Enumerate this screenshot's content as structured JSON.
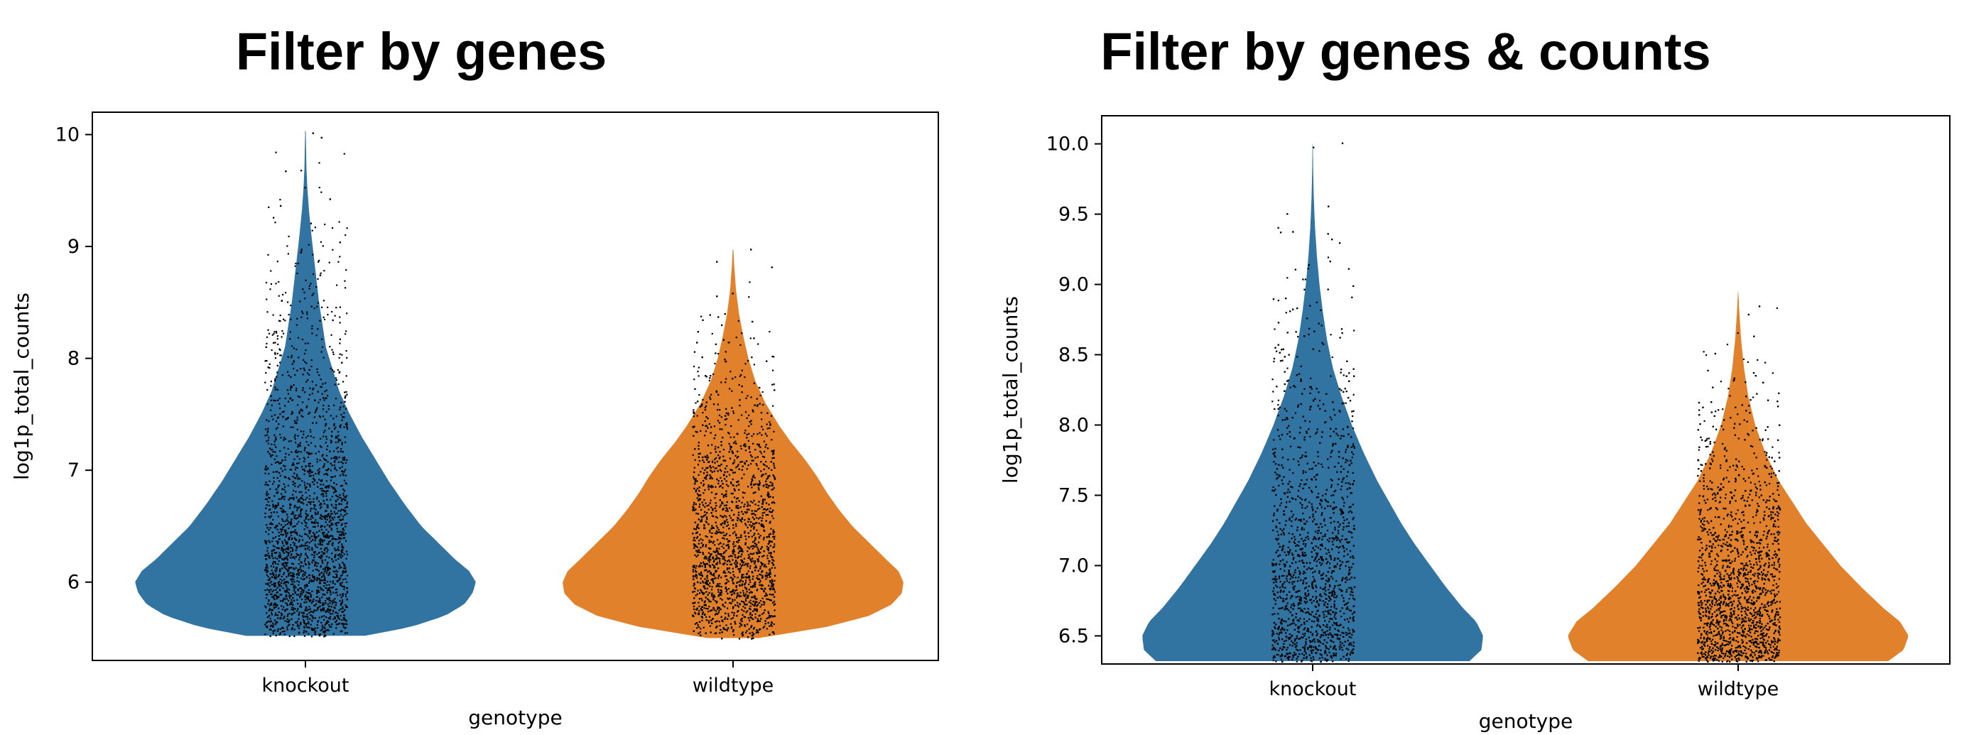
{
  "chart_data": [
    {
      "type": "violin",
      "title": "Filter by genes",
      "xlabel": "genotype",
      "ylabel": "log1p_total_counts",
      "categories": [
        "knockout",
        "wildtype"
      ],
      "ylim": [
        5.3,
        10.2
      ],
      "yticks": [
        6,
        7,
        8,
        9,
        10
      ],
      "ytick_labels": [
        "6",
        "7",
        "8",
        "9",
        "10"
      ],
      "series": [
        {
          "category": "knockout",
          "color": "#3274a1",
          "min": 5.52,
          "max": 10.03,
          "density": [
            [
              5.52,
              0.35
            ],
            [
              5.6,
              0.62
            ],
            [
              5.7,
              0.82
            ],
            [
              5.8,
              0.93
            ],
            [
              5.9,
              0.98
            ],
            [
              6.0,
              1.0
            ],
            [
              6.1,
              0.96
            ],
            [
              6.2,
              0.88
            ],
            [
              6.35,
              0.78
            ],
            [
              6.5,
              0.68
            ],
            [
              6.7,
              0.58
            ],
            [
              6.9,
              0.49
            ],
            [
              7.1,
              0.41
            ],
            [
              7.3,
              0.33
            ],
            [
              7.5,
              0.26
            ],
            [
              7.7,
              0.2
            ],
            [
              7.9,
              0.16
            ],
            [
              8.1,
              0.12
            ],
            [
              8.3,
              0.1
            ],
            [
              8.5,
              0.08
            ],
            [
              8.7,
              0.065
            ],
            [
              8.9,
              0.05
            ],
            [
              9.1,
              0.035
            ],
            [
              9.3,
              0.022
            ],
            [
              9.5,
              0.012
            ],
            [
              9.7,
              0.006
            ],
            [
              10.0,
              0.002
            ]
          ],
          "outliers": [
            [
              -0.12,
              9.68
            ],
            [
              0.09,
              9.98
            ],
            [
              0.04,
              10.02
            ],
            [
              -0.15,
              9.37
            ],
            [
              0.14,
              9.43
            ]
          ]
        },
        {
          "category": "wildtype",
          "color": "#e1812c",
          "min": 5.5,
          "max": 8.97,
          "density": [
            [
              5.5,
              0.15
            ],
            [
              5.6,
              0.55
            ],
            [
              5.7,
              0.8
            ],
            [
              5.8,
              0.93
            ],
            [
              5.9,
              0.99
            ],
            [
              6.0,
              1.0
            ],
            [
              6.1,
              0.97
            ],
            [
              6.2,
              0.9
            ],
            [
              6.35,
              0.8
            ],
            [
              6.5,
              0.7
            ],
            [
              6.65,
              0.62
            ],
            [
              6.8,
              0.55
            ],
            [
              6.95,
              0.49
            ],
            [
              7.1,
              0.42
            ],
            [
              7.25,
              0.34
            ],
            [
              7.4,
              0.27
            ],
            [
              7.6,
              0.19
            ],
            [
              7.8,
              0.13
            ],
            [
              8.0,
              0.09
            ],
            [
              8.2,
              0.06
            ],
            [
              8.4,
              0.035
            ],
            [
              8.6,
              0.018
            ],
            [
              8.8,
              0.008
            ],
            [
              8.97,
              0.002
            ]
          ],
          "outliers": [
            [
              0.1,
              8.98
            ],
            [
              -0.1,
              8.87
            ]
          ]
        }
      ]
    },
    {
      "type": "violin",
      "title": "Filter by genes & counts",
      "xlabel": "genotype",
      "ylabel": "log1p_total_counts",
      "categories": [
        "knockout",
        "wildtype"
      ],
      "ylim": [
        6.3,
        10.2
      ],
      "yticks": [
        6.5,
        7.0,
        7.5,
        8.0,
        8.5,
        9.0,
        9.5,
        10.0
      ],
      "ytick_labels": [
        "6.5",
        "7.0",
        "7.5",
        "8.0",
        "8.5",
        "9.0",
        "9.5",
        "10.0"
      ],
      "series": [
        {
          "category": "knockout",
          "color": "#3274a1",
          "min": 6.32,
          "max": 10.0,
          "density": [
            [
              6.32,
              0.92
            ],
            [
              6.4,
              0.99
            ],
            [
              6.5,
              1.0
            ],
            [
              6.6,
              0.96
            ],
            [
              6.7,
              0.88
            ],
            [
              6.85,
              0.78
            ],
            [
              7.0,
              0.69
            ],
            [
              7.15,
              0.6
            ],
            [
              7.3,
              0.52
            ],
            [
              7.45,
              0.45
            ],
            [
              7.6,
              0.38
            ],
            [
              7.8,
              0.3
            ],
            [
              8.0,
              0.23
            ],
            [
              8.2,
              0.17
            ],
            [
              8.4,
              0.12
            ],
            [
              8.6,
              0.085
            ],
            [
              8.8,
              0.06
            ],
            [
              9.0,
              0.04
            ],
            [
              9.2,
              0.025
            ],
            [
              9.4,
              0.014
            ],
            [
              9.6,
              0.007
            ],
            [
              9.8,
              0.003
            ],
            [
              10.0,
              0.001
            ]
          ],
          "outliers": [
            [
              0.17,
              10.01
            ],
            [
              0.0,
              9.98
            ],
            [
              -0.12,
              9.38
            ]
          ]
        },
        {
          "category": "wildtype",
          "color": "#e1812c",
          "min": 6.32,
          "max": 8.95,
          "density": [
            [
              6.32,
              0.88
            ],
            [
              6.4,
              0.97
            ],
            [
              6.5,
              1.0
            ],
            [
              6.6,
              0.95
            ],
            [
              6.7,
              0.85
            ],
            [
              6.85,
              0.72
            ],
            [
              7.0,
              0.6
            ],
            [
              7.15,
              0.5
            ],
            [
              7.3,
              0.4
            ],
            [
              7.45,
              0.32
            ],
            [
              7.6,
              0.24
            ],
            [
              7.8,
              0.16
            ],
            [
              8.0,
              0.1
            ],
            [
              8.2,
              0.06
            ],
            [
              8.4,
              0.035
            ],
            [
              8.6,
              0.018
            ],
            [
              8.8,
              0.007
            ],
            [
              8.95,
              0.001
            ]
          ],
          "outliers": [
            [
              0.12,
              8.85
            ]
          ]
        }
      ]
    }
  ]
}
